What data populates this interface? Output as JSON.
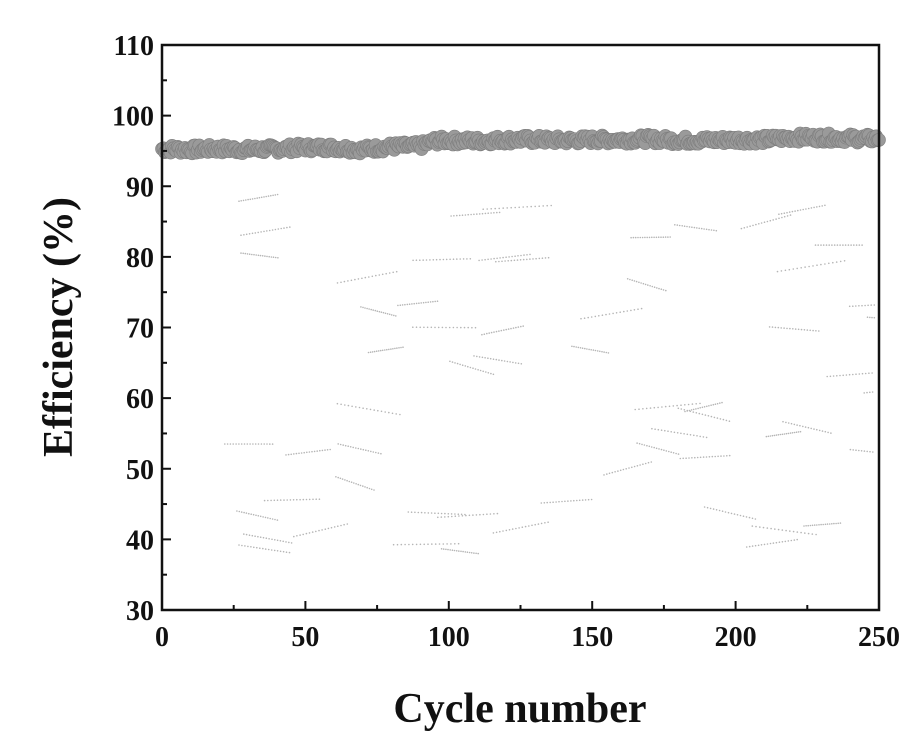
{
  "chart_data": {
    "type": "scatter",
    "title": "",
    "xlabel": "Cycle number",
    "ylabel": "Efficiency (%)",
    "xlim": [
      0,
      250
    ],
    "ylim": [
      30,
      110
    ],
    "xticks": [
      "0",
      "50",
      "100",
      "150",
      "200",
      "250"
    ],
    "yticks": [
      "30",
      "40",
      "50",
      "60",
      "70",
      "80",
      "90",
      "100",
      "110"
    ],
    "grid": false,
    "legend": "none",
    "series": [
      {
        "marker_color": "#9a9a9a",
        "x": [
          0,
          10,
          20,
          30,
          40,
          50,
          60,
          70,
          80,
          90,
          95,
          100,
          110,
          120,
          130,
          140,
          150,
          160,
          170,
          180,
          190,
          200,
          210,
          220,
          230,
          240,
          250
        ],
        "y": [
          95.3,
          95.2,
          95.3,
          95.2,
          95.3,
          95.5,
          95.5,
          95.2,
          95.6,
          95.7,
          96.4,
          96.5,
          96.4,
          96.6,
          96.6,
          96.5,
          96.6,
          96.6,
          96.7,
          96.5,
          96.5,
          96.6,
          96.6,
          96.9,
          96.9,
          96.8,
          96.7
        ]
      }
    ]
  }
}
